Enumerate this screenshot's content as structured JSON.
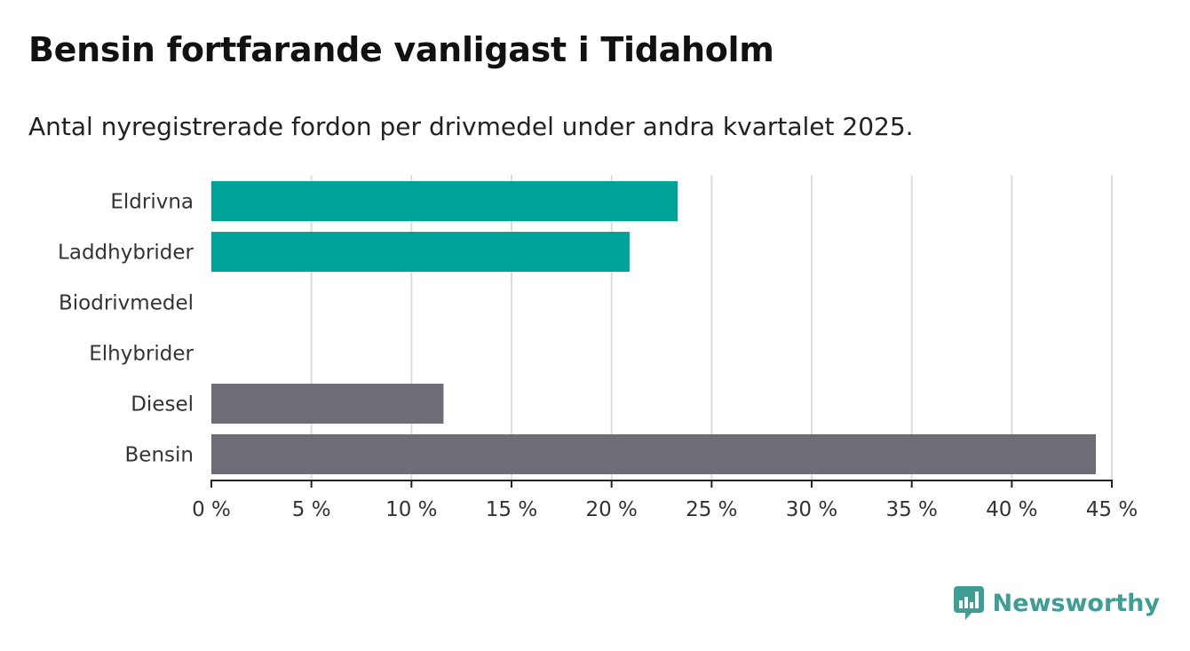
{
  "title": "Bensin fortfarande vanligast i Tidaholm",
  "subtitle": "Antal nyregistrerade fordon per drivmedel under andra kvartalet 2025.",
  "brand": {
    "name": "Newsworthy",
    "icon": "newsworthy-logo-icon",
    "color": "#3e9e96"
  },
  "chart_data": {
    "type": "bar",
    "orientation": "horizontal",
    "title": "Bensin fortfarande vanligast i Tidaholm",
    "subtitle": "Antal nyregistrerade fordon per drivmedel under andra kvartalet 2025.",
    "xlabel": "",
    "ylabel": "",
    "categories": [
      "Eldrivna",
      "Laddhybrider",
      "Biodrivmedel",
      "Elhybrider",
      "Diesel",
      "Bensin"
    ],
    "values": [
      23.3,
      20.9,
      0,
      0,
      11.6,
      44.2
    ],
    "colors": [
      "#00a39a",
      "#00a39a",
      "#00a39a",
      "#00a39a",
      "#6e6d75",
      "#6e6d75"
    ],
    "xlim": [
      0,
      45
    ],
    "ticks": [
      0,
      5,
      10,
      15,
      20,
      25,
      30,
      35,
      40,
      45
    ],
    "tick_labels": [
      "0 %",
      "5 %",
      "10 %",
      "15 %",
      "20 %",
      "25 %",
      "30 %",
      "35 %",
      "40 %",
      "45 %"
    ],
    "grid": true,
    "legend": "none"
  }
}
